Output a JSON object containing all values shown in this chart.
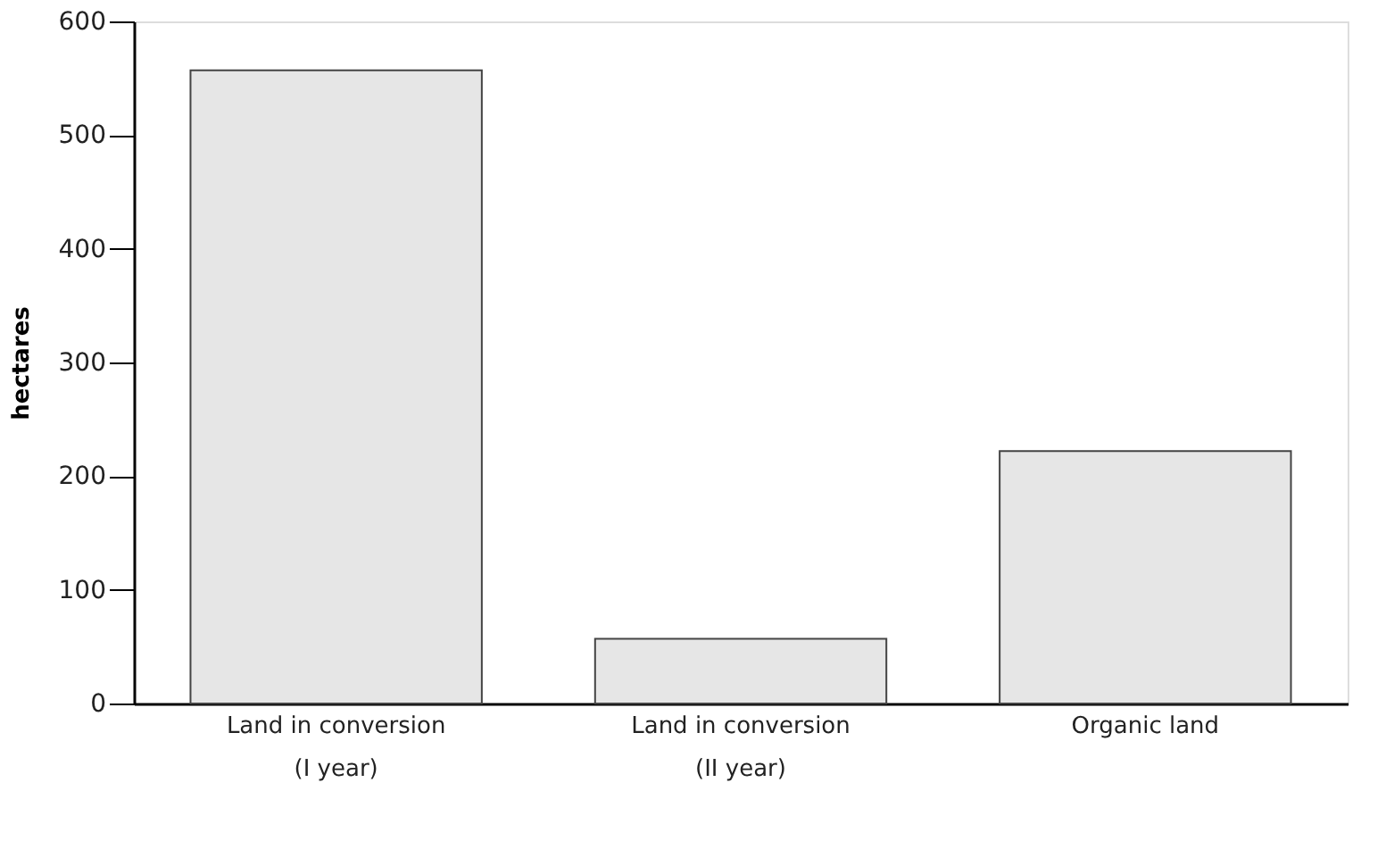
{
  "chart_data": {
    "type": "bar",
    "ylabel": "hectares",
    "categories": [
      "Land in  conversion\n(I year)",
      "Land in conversion\n(II year)",
      "Organic land"
    ],
    "values": [
      557,
      57,
      222
    ],
    "color": "#e6e6e6",
    "ylim": [
      0,
      600
    ],
    "yticks": [
      0,
      100,
      200,
      300,
      400,
      500,
      600
    ],
    "grid": false
  }
}
